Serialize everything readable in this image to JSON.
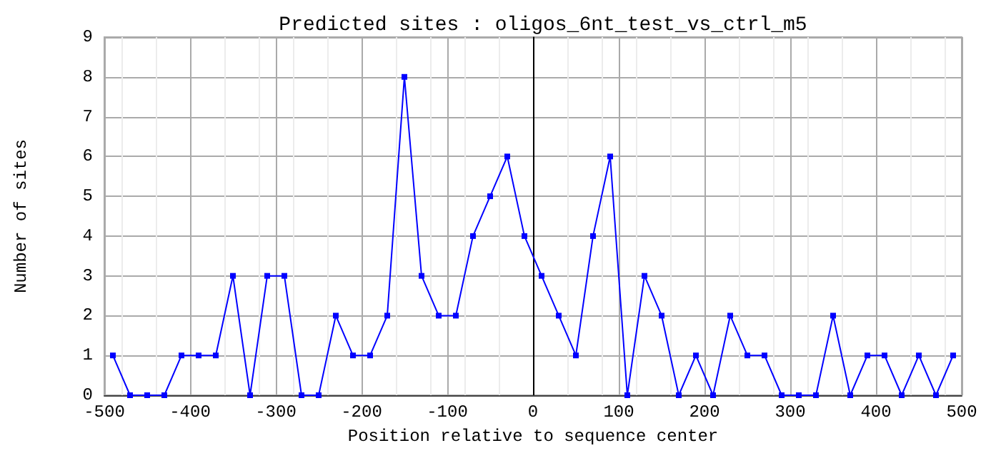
{
  "chart_data": {
    "type": "line",
    "title": "Predicted sites : oligos_6nt_test_vs_ctrl_m5",
    "xlabel": "Position relative to sequence center",
    "ylabel": "Number of sites",
    "x": [
      -490,
      -470,
      -450,
      -430,
      -410,
      -390,
      -370,
      -350,
      -330,
      -310,
      -290,
      -270,
      -250,
      -230,
      -210,
      -190,
      -170,
      -150,
      -130,
      -110,
      -90,
      -70,
      -50,
      -30,
      -10,
      10,
      30,
      50,
      70,
      90,
      110,
      130,
      150,
      170,
      190,
      210,
      230,
      250,
      270,
      290,
      310,
      330,
      350,
      370,
      390,
      410,
      430,
      450,
      470,
      490
    ],
    "series": [
      {
        "color": "#0000ff",
        "values": [
          1,
          0,
          0,
          0,
          1,
          1,
          1,
          3,
          0,
          3,
          3,
          0,
          0,
          2,
          1,
          1,
          2,
          8,
          3,
          2,
          2,
          4,
          5,
          6,
          4,
          3,
          2,
          1,
          4,
          6,
          0,
          3,
          2,
          0,
          1,
          0,
          2,
          1,
          1,
          0,
          0,
          0,
          2,
          0,
          1,
          1,
          0,
          1,
          0,
          1
        ]
      }
    ],
    "xlim": [
      -500,
      500
    ],
    "xticks": [
      -500,
      -400,
      -300,
      -200,
      -100,
      0,
      100,
      200,
      300,
      400,
      500
    ],
    "ylim": [
      0,
      9
    ],
    "yticks": [
      0,
      1,
      2,
      3,
      4,
      5,
      6,
      7,
      8,
      9
    ],
    "ref_lines": [
      {
        "axis": "x",
        "value": 0,
        "color": "#000000"
      }
    ],
    "grid": true,
    "marker": "square",
    "line_style": "solid"
  }
}
